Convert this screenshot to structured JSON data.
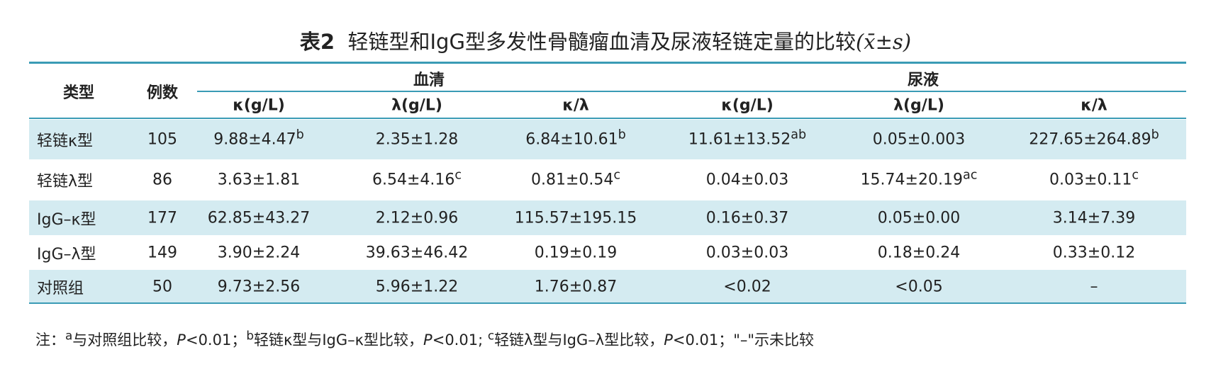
{
  "title": {
    "label": "表2",
    "text": "轻链型和IgG型多发性骨髓瘤血清及尿液轻链定量的比较",
    "symbol": "(x̄±s)"
  },
  "table": {
    "head": {
      "type": "类型",
      "count": "例数",
      "groups": [
        "血清",
        "尿液"
      ],
      "columns": [
        "κ(g/L)",
        "λ(g/L)",
        "κ/λ",
        "κ(g/L)",
        "λ(g/L)",
        "κ/λ"
      ]
    },
    "rows": [
      {
        "type": "轻链κ型",
        "count": "105",
        "cells": [
          {
            "text": "9.88±4.47",
            "sup": "b"
          },
          {
            "text": "2.35±1.28"
          },
          {
            "text": "6.84±10.61",
            "sup": "b"
          },
          {
            "text": "11.61±13.52",
            "sup": "ab"
          },
          {
            "text": "0.05±0.003"
          },
          {
            "text": "227.65±264.89",
            "sup": "b"
          }
        ]
      },
      {
        "type": "轻链λ型",
        "count": "86",
        "cells": [
          {
            "text": "3.63±1.81"
          },
          {
            "text": "6.54±4.16",
            "sup": "c"
          },
          {
            "text": "0.81±0.54",
            "sup": "c"
          },
          {
            "text": "0.04±0.03"
          },
          {
            "text": "15.74±20.19",
            "sup": "ac"
          },
          {
            "text": "0.03±0.11",
            "sup": "c"
          }
        ]
      },
      {
        "type": "IgG–κ型",
        "count": "177",
        "cells": [
          {
            "text": "62.85±43.27"
          },
          {
            "text": "2.12±0.96"
          },
          {
            "text": "115.57±195.15"
          },
          {
            "text": "0.16±0.37"
          },
          {
            "text": "0.05±0.00"
          },
          {
            "text": "3.14±7.39"
          }
        ]
      },
      {
        "type": "IgG–λ型",
        "count": "149",
        "cells": [
          {
            "text": "3.90±2.24"
          },
          {
            "text": "39.63±46.42"
          },
          {
            "text": "0.19±0.19"
          },
          {
            "text": "0.03±0.03"
          },
          {
            "text": "0.18±0.24"
          },
          {
            "text": "0.33±0.12"
          }
        ]
      },
      {
        "type": "对照组",
        "count": "50",
        "cells": [
          {
            "text": "9.73±2.56"
          },
          {
            "text": "5.96±1.22"
          },
          {
            "text": "1.76±0.87"
          },
          {
            "text": "<0.02"
          },
          {
            "text": "<0.05"
          },
          {
            "text": "–"
          }
        ]
      }
    ]
  },
  "note": [
    {
      "text": "注："
    },
    {
      "sup": "a"
    },
    {
      "text": "与对照组比较，"
    },
    {
      "italic": "P"
    },
    {
      "text": "<0.01；"
    },
    {
      "sup": "b"
    },
    {
      "text": "轻链κ型与IgG–κ型比较，"
    },
    {
      "italic": "P"
    },
    {
      "text": "<0.01; "
    },
    {
      "sup": "c"
    },
    {
      "text": "轻链λ型与IgG–λ型比较，"
    },
    {
      "italic": "P"
    },
    {
      "text": "<0.01；\"–\"示未比较"
    }
  ]
}
